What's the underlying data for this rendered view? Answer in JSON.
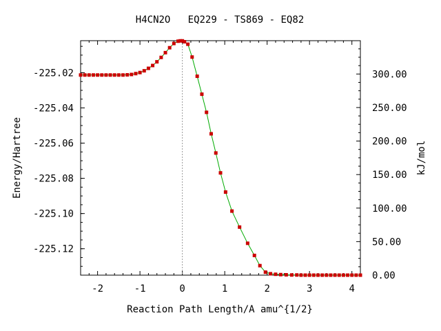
{
  "chart_data": {
    "type": "scatter",
    "title": "H4CN2O   EQ229 - TS869 - EQ82",
    "xlabel": "Reaction Path Length/A amu^{1/2}",
    "ylabel": "Energy/Hartree",
    "ylabel_right": "kJ/mol",
    "xlim": [
      -2.4,
      4.2
    ],
    "ylim": [
      -225.135,
      -225.0018
    ],
    "y2lim": [
      0.0,
      349.7
    ],
    "x_ticks": [
      -2,
      -1,
      0,
      1,
      2,
      3,
      4
    ],
    "x_tick_labels": [
      "-2",
      "-1",
      "0",
      "1",
      "2",
      "3",
      "4"
    ],
    "y_ticks": [
      -225.02,
      -225.04,
      -225.06,
      -225.08,
      -225.1,
      -225.12
    ],
    "y_tick_labels": [
      "-225.02",
      "-225.04",
      "-225.06",
      "-225.08",
      "-225.10",
      "-225.12"
    ],
    "y2_ticks": [
      0,
      50,
      100,
      150,
      200,
      250,
      300
    ],
    "y2_tick_labels": [
      "0.00",
      "50.00",
      "100.00",
      "150.00",
      "200.00",
      "250.00",
      "300.00"
    ],
    "ts_x": 0.0,
    "grid": false,
    "series": [
      {
        "color": "#cc0000",
        "line_color": "#00aa00",
        "x": [
          -2.4,
          -2.3,
          -2.2,
          -2.1,
          -2.0,
          -1.9,
          -1.8,
          -1.7,
          -1.6,
          -1.5,
          -1.4,
          -1.3,
          -1.2,
          -1.1,
          -1.0,
          -0.9,
          -0.8,
          -0.7,
          -0.6,
          -0.5,
          -0.4,
          -0.3,
          -0.2,
          -0.1,
          -0.05,
          0.0,
          0.05,
          0.13,
          0.23,
          0.35,
          0.46,
          0.57,
          0.68,
          0.79,
          0.9,
          1.02,
          1.17,
          1.35,
          1.54,
          1.7,
          1.83,
          1.96,
          2.08,
          2.2,
          2.32,
          2.45,
          2.58,
          2.7,
          2.8,
          2.9,
          3.0,
          3.1,
          3.2,
          3.3,
          3.4,
          3.5,
          3.6,
          3.7,
          3.8,
          3.9,
          4.0,
          4.1,
          4.2
        ],
        "y": [
          -225.0213,
          -225.0213,
          -225.0213,
          -225.0213,
          -225.0213,
          -225.0213,
          -225.0213,
          -225.0213,
          -225.0213,
          -225.0213,
          -225.0213,
          -225.0212,
          -225.021,
          -225.0205,
          -225.0199,
          -225.0189,
          -225.0175,
          -225.0159,
          -225.0138,
          -225.0113,
          -225.0086,
          -225.0058,
          -225.0034,
          -225.0021,
          -225.0019,
          -225.0019,
          -225.0024,
          -225.0038,
          -225.0111,
          -225.022,
          -225.0322,
          -225.0425,
          -225.0547,
          -225.0656,
          -225.0769,
          -225.0878,
          -225.0986,
          -225.1077,
          -225.1169,
          -225.1238,
          -225.1296,
          -225.1333,
          -225.1342,
          -225.1345,
          -225.1347,
          -225.1348,
          -225.1349,
          -225.1349,
          -225.135,
          -225.135,
          -225.135,
          -225.135,
          -225.135,
          -225.135,
          -225.135,
          -225.135,
          -225.135,
          -225.135,
          -225.135,
          -225.135,
          -225.135,
          -225.135,
          -225.135
        ]
      }
    ]
  }
}
